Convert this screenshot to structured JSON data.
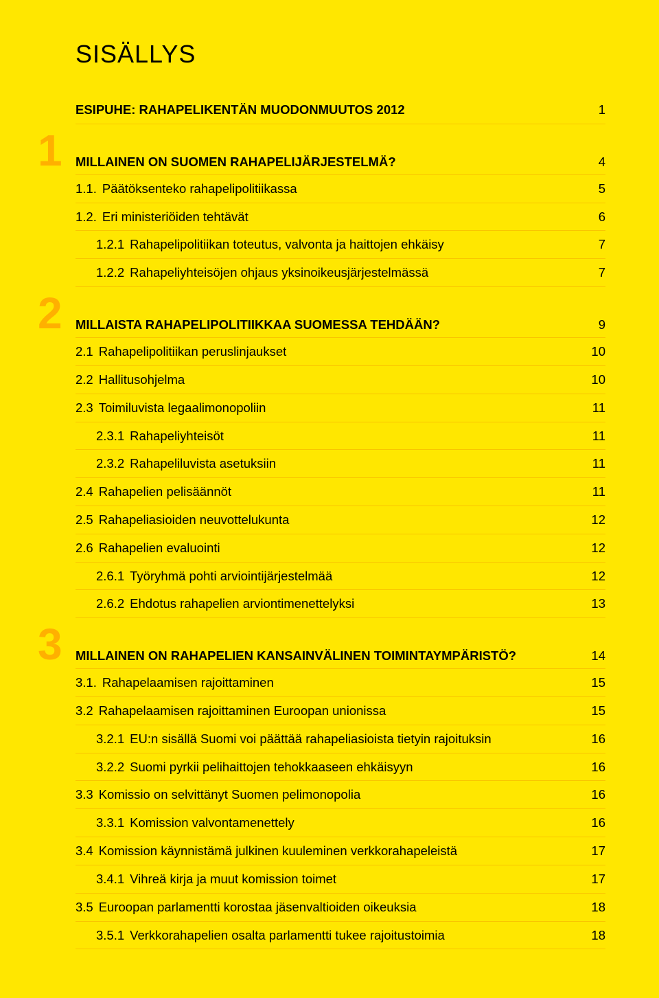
{
  "doc_title": "SISÄLLYS",
  "palette": {
    "background": "#ffe700",
    "rule": "#f9c400",
    "section_badge": "#ffb000",
    "text": "#000000"
  },
  "typography": {
    "title_fontsize_pt": 27,
    "body_fontsize_pt": 14,
    "badge_fontsize_pt": 48,
    "font_family": "Helvetica"
  },
  "toc": [
    {
      "kind": "line",
      "level": 0,
      "num": "",
      "label": "ESIPUHE: RAHAPELIKENTÄN MUODONMUUTOS 2012",
      "page": "1"
    },
    {
      "kind": "section",
      "badge": "1",
      "label": "MILLAINEN ON SUOMEN RAHAPELIJÄRJESTELMÄ?",
      "page": "4"
    },
    {
      "kind": "line",
      "level": 1,
      "num": "1.1.",
      "label": "Päätöksenteko rahapelipolitiikassa",
      "page": "5"
    },
    {
      "kind": "line",
      "level": 1,
      "num": "1.2.",
      "label": "Eri ministeriöiden tehtävät",
      "page": "6"
    },
    {
      "kind": "line",
      "level": 2,
      "num": "1.2.1",
      "label": "Rahapelipolitiikan toteutus, valvonta ja haittojen ehkäisy",
      "page": "7"
    },
    {
      "kind": "line",
      "level": 2,
      "num": "1.2.2",
      "label": "Rahapeliyhteisöjen ohjaus yksinoikeusjärjestelmässä",
      "page": "7"
    },
    {
      "kind": "section",
      "badge": "2",
      "label": "MILLAISTA RAHAPELIPOLITIIKKAA SUOMESSA TEHDÄÄN?",
      "page": "9"
    },
    {
      "kind": "line",
      "level": 1,
      "num": "2.1",
      "label": "Rahapelipolitiikan peruslinjaukset",
      "page": "10"
    },
    {
      "kind": "line",
      "level": 1,
      "num": "2.2",
      "label": "Hallitusohjelma",
      "page": "10"
    },
    {
      "kind": "line",
      "level": 1,
      "num": "2.3",
      "label": "Toimiluvista legaalimonopoliin",
      "page": "11"
    },
    {
      "kind": "line",
      "level": 2,
      "num": "2.3.1",
      "label": "Rahapeliyhteisöt",
      "page": "11"
    },
    {
      "kind": "line",
      "level": 2,
      "num": "2.3.2",
      "label": "Rahapeliluvista asetuksiin",
      "page": "11"
    },
    {
      "kind": "line",
      "level": 1,
      "num": "2.4",
      "label": "Rahapelien pelisäännöt",
      "page": "11"
    },
    {
      "kind": "line",
      "level": 1,
      "num": "2.5",
      "label": "Rahapeliasioiden neuvottelukunta",
      "page": "12"
    },
    {
      "kind": "line",
      "level": 1,
      "num": "2.6",
      "label": "Rahapelien evaluointi",
      "page": "12"
    },
    {
      "kind": "line",
      "level": 2,
      "num": "2.6.1",
      "label": "Työryhmä pohti arviointijärjestelmää",
      "page": "12"
    },
    {
      "kind": "line",
      "level": 2,
      "num": "2.6.2",
      "label": "Ehdotus rahapelien arviontimenettelyksi",
      "page": "13"
    },
    {
      "kind": "section",
      "badge": "3",
      "label": "MILLAINEN ON RAHAPELIEN KANSAINVÄLINEN TOIMINTAYMPÄRISTÖ?",
      "page": "14"
    },
    {
      "kind": "line",
      "level": 1,
      "num": "3.1.",
      "label": "Rahapelaamisen rajoittaminen",
      "page": "15"
    },
    {
      "kind": "line",
      "level": 1,
      "num": "3.2",
      "label": "Rahapelaamisen rajoittaminen Euroopan unionissa",
      "page": "15"
    },
    {
      "kind": "line",
      "level": 2,
      "num": "3.2.1",
      "label": "EU:n sisällä Suomi voi päättää rahapeliasioista tietyin rajoituksin",
      "page": "16"
    },
    {
      "kind": "line",
      "level": 2,
      "num": "3.2.2",
      "label": "Suomi pyrkii pelihaittojen tehokkaaseen ehkäisyyn",
      "page": "16"
    },
    {
      "kind": "line",
      "level": 1,
      "num": "3.3",
      "label": "Komissio on selvittänyt Suomen pelimonopolia",
      "page": "16"
    },
    {
      "kind": "line",
      "level": 2,
      "num": "3.3.1",
      "label": "Komission valvontamenettely",
      "page": "16"
    },
    {
      "kind": "line",
      "level": 1,
      "num": "3.4",
      "label": "Komission käynnistämä julkinen kuuleminen verkkorahapeleistä",
      "page": "17"
    },
    {
      "kind": "line",
      "level": 2,
      "num": "3.4.1",
      "label": "Vihreä kirja ja muut komission toimet",
      "page": "17"
    },
    {
      "kind": "line",
      "level": 1,
      "num": "3.5",
      "label": "Euroopan parlamentti korostaa jäsenvaltioiden oikeuksia",
      "page": "18"
    },
    {
      "kind": "line",
      "level": 2,
      "num": "3.5.1",
      "label": "Verkkorahapelien osalta parlamentti tukee rajoitustoimia",
      "page": "18"
    }
  ]
}
